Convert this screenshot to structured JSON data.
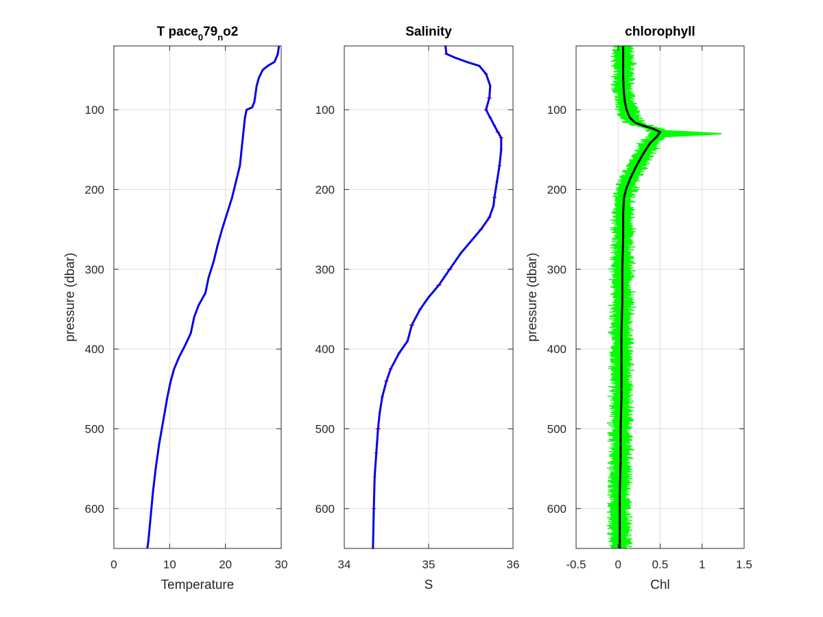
{
  "chart_data": [
    {
      "type": "line",
      "title": "T pace079no2",
      "title_parts": {
        "base": "T pace",
        "sub1": "0",
        "mid": "79",
        "sub2": "n",
        "tail": "o2"
      },
      "xlabel": "Temperature",
      "ylabel": "pressure (dbar)",
      "xlim": [
        0,
        30
      ],
      "ylim": [
        20,
        650
      ],
      "y_reversed": true,
      "xticks": [
        0,
        10,
        20,
        30
      ],
      "yticks": [
        100,
        200,
        300,
        400,
        500,
        600
      ],
      "grid": true,
      "series": [
        {
          "color": "#0000ee",
          "points": [
            [
              29.6,
              20
            ],
            [
              29.4,
              30
            ],
            [
              28.8,
              40
            ],
            [
              27.6,
              45
            ],
            [
              26.7,
              50
            ],
            [
              26.0,
              60
            ],
            [
              25.6,
              70
            ],
            [
              25.4,
              80
            ],
            [
              25.2,
              90
            ],
            [
              24.8,
              97
            ],
            [
              23.8,
              100
            ],
            [
              23.5,
              110
            ],
            [
              23.2,
              130
            ],
            [
              22.9,
              150
            ],
            [
              22.6,
              170
            ],
            [
              21.9,
              190
            ],
            [
              21.2,
              210
            ],
            [
              20.3,
              230
            ],
            [
              19.4,
              250
            ],
            [
              18.6,
              270
            ],
            [
              17.9,
              290
            ],
            [
              17.0,
              310
            ],
            [
              16.4,
              330
            ],
            [
              15.2,
              345
            ],
            [
              14.4,
              360
            ],
            [
              13.8,
              380
            ],
            [
              12.8,
              395
            ],
            [
              11.7,
              410
            ],
            [
              10.8,
              425
            ],
            [
              10.2,
              440
            ],
            [
              9.6,
              460
            ],
            [
              9.1,
              480
            ],
            [
              8.6,
              500
            ],
            [
              8.1,
              520
            ],
            [
              7.5,
              550
            ],
            [
              7.0,
              580
            ],
            [
              6.6,
              610
            ],
            [
              6.2,
              640
            ],
            [
              6.0,
              650
            ]
          ]
        }
      ]
    },
    {
      "type": "line",
      "title": "Salinity",
      "xlabel": "S",
      "ylabel": "",
      "xlim": [
        34,
        36
      ],
      "ylim": [
        20,
        650
      ],
      "y_reversed": true,
      "xticks": [
        34,
        35,
        36
      ],
      "yticks": [
        100,
        200,
        300,
        400,
        500,
        600
      ],
      "grid": true,
      "series": [
        {
          "color": "#0000ee",
          "error_color": "#ff0000",
          "points": [
            [
              35.2,
              20
            ],
            [
              35.21,
              30
            ],
            [
              35.32,
              35
            ],
            [
              35.45,
              40
            ],
            [
              35.6,
              45
            ],
            [
              35.68,
              55
            ],
            [
              35.73,
              70
            ],
            [
              35.72,
              85
            ],
            [
              35.68,
              100
            ],
            [
              35.73,
              110
            ],
            [
              35.78,
              120
            ],
            [
              35.82,
              128
            ],
            [
              35.86,
              135
            ],
            [
              35.86,
              150
            ],
            [
              35.84,
              170
            ],
            [
              35.81,
              190
            ],
            [
              35.78,
              210
            ],
            [
              35.77,
              220
            ],
            [
              35.72,
              235
            ],
            [
              35.62,
              250
            ],
            [
              35.5,
              265
            ],
            [
              35.38,
              280
            ],
            [
              35.25,
              300
            ],
            [
              35.12,
              320
            ],
            [
              35.0,
              335
            ],
            [
              34.9,
              350
            ],
            [
              34.8,
              370
            ],
            [
              34.75,
              390
            ],
            [
              34.65,
              405
            ],
            [
              34.55,
              425
            ],
            [
              34.5,
              440
            ],
            [
              34.45,
              460
            ],
            [
              34.42,
              480
            ],
            [
              34.4,
              500
            ],
            [
              34.38,
              530
            ],
            [
              34.36,
              560
            ],
            [
              34.35,
              600
            ],
            [
              34.34,
              650
            ]
          ]
        }
      ]
    },
    {
      "type": "line",
      "title": "chlorophyll",
      "xlabel": "Chl",
      "ylabel": "pressure (dbar)",
      "xlim": [
        -0.5,
        1.5
      ],
      "ylim": [
        20,
        650
      ],
      "y_reversed": true,
      "xticks": [
        -0.5,
        0,
        0.5,
        1,
        1.5
      ],
      "yticks": [
        100,
        200,
        300,
        400,
        500,
        600
      ],
      "grid": true,
      "series": [
        {
          "color": "#000000",
          "band_color": "#00ff00",
          "band_halfwidth": 0.11,
          "spike": [
            [
              0.5,
              126
            ],
            [
              1.23,
              130
            ],
            [
              0.5,
              134
            ]
          ],
          "points": [
            [
              0.06,
              20
            ],
            [
              0.06,
              40
            ],
            [
              0.06,
              60
            ],
            [
              0.07,
              80
            ],
            [
              0.08,
              90
            ],
            [
              0.1,
              100
            ],
            [
              0.14,
              110
            ],
            [
              0.2,
              116
            ],
            [
              0.3,
              120
            ],
            [
              0.42,
              124
            ],
            [
              0.5,
              128
            ],
            [
              0.46,
              134
            ],
            [
              0.38,
              142
            ],
            [
              0.3,
              155
            ],
            [
              0.22,
              170
            ],
            [
              0.15,
              185
            ],
            [
              0.1,
              198
            ],
            [
              0.07,
              210
            ],
            [
              0.06,
              230
            ],
            [
              0.06,
              260
            ],
            [
              0.05,
              300
            ],
            [
              0.05,
              340
            ],
            [
              0.04,
              380
            ],
            [
              0.04,
              420
            ],
            [
              0.04,
              460
            ],
            [
              0.03,
              500
            ],
            [
              0.03,
              540
            ],
            [
              0.02,
              580
            ],
            [
              0.02,
              620
            ],
            [
              0.02,
              650
            ]
          ]
        }
      ]
    }
  ]
}
